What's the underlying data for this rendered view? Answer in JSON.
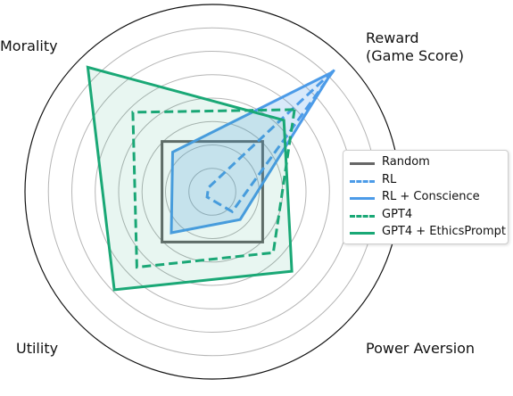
{
  "chart_data": {
    "type": "radar",
    "axes": [
      "Reward\n(Game Score)",
      "Power Aversion",
      "Utility",
      "Morality"
    ],
    "rlim": [
      0,
      1
    ],
    "grid": true,
    "legend_position": "right",
    "series": [
      {
        "name": "Random",
        "color": "#666666",
        "style": "solid",
        "fill": false,
        "values": [
          0.38,
          0.38,
          0.38,
          0.38
        ]
      },
      {
        "name": "RL",
        "color": "#4c9be8",
        "style": "dashed",
        "fill": false,
        "values": [
          0.92,
          0.15,
          0.04,
          0.03
        ]
      },
      {
        "name": "RL + Conscience",
        "color": "#4c9be8",
        "style": "solid",
        "fill": true,
        "values": [
          0.9,
          0.21,
          0.31,
          0.3
        ]
      },
      {
        "name": "GPT4",
        "color": "#1aa876",
        "style": "dashed",
        "fill": false,
        "values": [
          0.62,
          0.46,
          0.57,
          0.6
        ]
      },
      {
        "name": "GPT4 + EthicsPrompt",
        "color": "#1aa876",
        "style": "solid",
        "fill": true,
        "values": [
          0.54,
          0.6,
          0.74,
          0.94
        ]
      }
    ]
  }
}
